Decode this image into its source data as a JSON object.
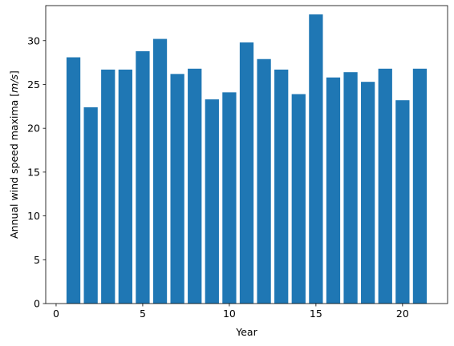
{
  "chart_data": {
    "type": "bar",
    "xlabel": "Year",
    "ylabel_prefix": "Annual wind speed maxima [",
    "ylabel_unit": "m/s",
    "ylabel_suffix": "]",
    "x": [
      1,
      2,
      3,
      4,
      5,
      6,
      7,
      8,
      9,
      10,
      11,
      12,
      13,
      14,
      15,
      16,
      17,
      18,
      19,
      20,
      21
    ],
    "values": [
      28.1,
      22.4,
      26.7,
      26.7,
      28.8,
      30.2,
      26.2,
      26.8,
      23.3,
      24.1,
      29.8,
      27.9,
      26.7,
      23.9,
      33.0,
      25.8,
      26.4,
      25.3,
      26.8,
      23.2,
      26.8
    ],
    "xlim": [
      -0.6,
      22.6
    ],
    "ylim": [
      0,
      34.0
    ],
    "xticks": [
      0,
      5,
      10,
      15,
      20
    ],
    "yticks": [
      0,
      5,
      10,
      15,
      20,
      25,
      30
    ],
    "bar_color": "#1f77b4",
    "grid": false
  }
}
